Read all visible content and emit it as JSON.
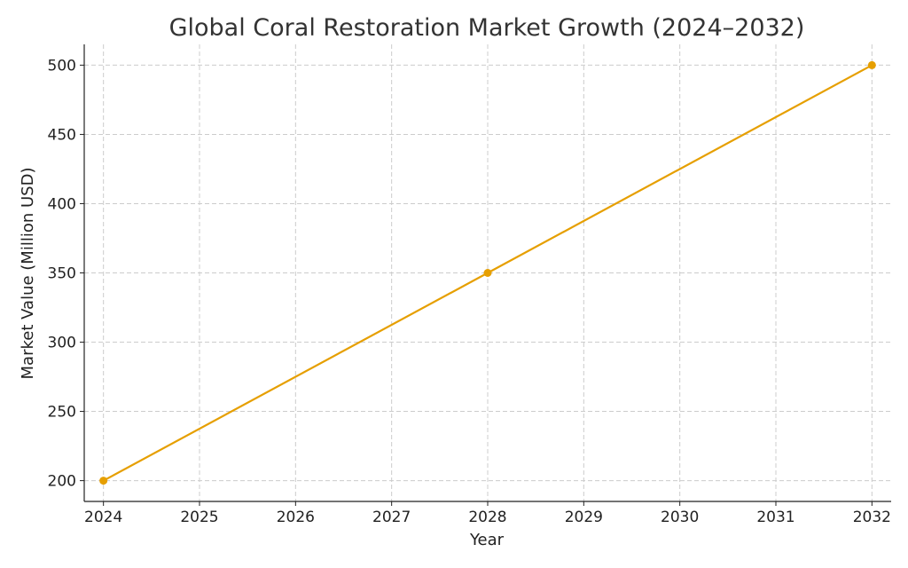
{
  "chart_data": {
    "type": "line",
    "title": "Global Coral Restoration Market Growth (2024–2032)",
    "xlabel": "Year",
    "ylabel": "Market Value (Million USD)",
    "x_ticks": [
      "2024",
      "2025",
      "2026",
      "2027",
      "2028",
      "2029",
      "2030",
      "2031",
      "2032"
    ],
    "y_ticks": [
      "200",
      "250",
      "300",
      "350",
      "400",
      "450",
      "500"
    ],
    "xlim": [
      2023.8,
      2032.2
    ],
    "ylim": [
      185,
      515
    ],
    "grid": true,
    "series": [
      {
        "x": [
          2024,
          2028,
          2032
        ],
        "y": [
          200,
          350,
          500
        ],
        "color": "#E69F00",
        "marker": "circle"
      }
    ]
  }
}
